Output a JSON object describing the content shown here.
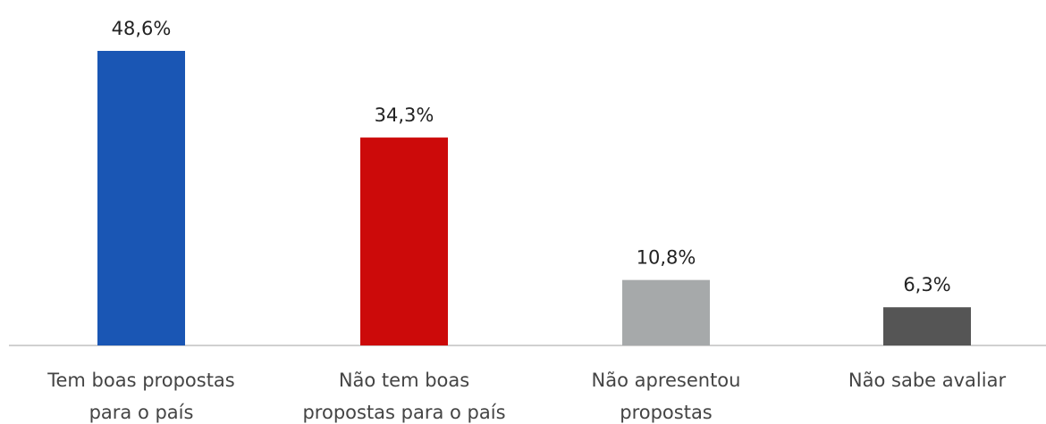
{
  "chart_data": {
    "type": "bar",
    "title": "",
    "xlabel": "",
    "ylabel": "",
    "ylim": [
      0,
      48.6
    ],
    "grid": false,
    "legend": "none",
    "categories": [
      [
        "Tem boas propostas",
        "para o país"
      ],
      [
        "Não tem boas",
        "propostas para o país"
      ],
      [
        "Não apresentou",
        "propostas"
      ],
      [
        "Não sabe avaliar"
      ]
    ],
    "values": [
      48.6,
      34.3,
      10.8,
      6.3
    ],
    "value_labels": [
      "48,6%",
      "34,3%",
      "10,8%",
      "6,3%"
    ],
    "colors": [
      "#1A56B4",
      "#CC0A0A",
      "#A6A9AA",
      "#555555"
    ],
    "axis_color": "#D0D0D0"
  }
}
